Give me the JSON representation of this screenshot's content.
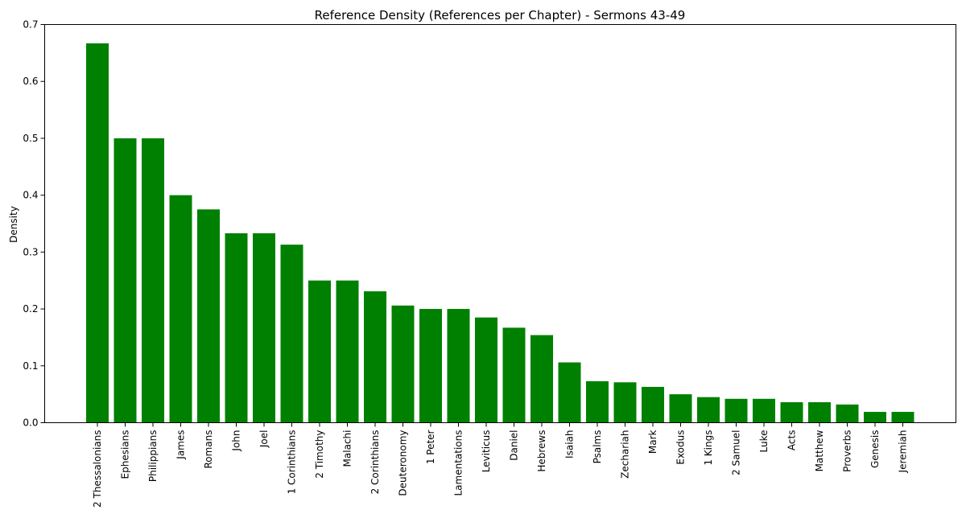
{
  "chart_data": {
    "type": "bar",
    "title": "Reference Density (References per Chapter) - Sermons 43-49",
    "xlabel": "",
    "ylabel": "Density",
    "ylim": [
      0,
      0.7
    ],
    "yticks": [
      "0.0",
      "0.1",
      "0.2",
      "0.3",
      "0.4",
      "0.5",
      "0.6",
      "0.7"
    ],
    "grid": false,
    "bar_color": "#008000",
    "categories": [
      "2 Thessalonians",
      "Ephesians",
      "Philippians",
      "James",
      "Romans",
      "John",
      "Joel",
      "1 Corinthians",
      "2 Timothy",
      "Malachi",
      "2 Corinthians",
      "Deuteronomy",
      "1 Peter",
      "Lamentations",
      "Leviticus",
      "Daniel",
      "Hebrews",
      "Isaiah",
      "Psalms",
      "Zechariah",
      "Mark",
      "Exodus",
      "1 Kings",
      "2 Samuel",
      "Luke",
      "Acts",
      "Matthew",
      "Proverbs",
      "Genesis",
      "Jeremiah"
    ],
    "values": [
      0.667,
      0.5,
      0.5,
      0.4,
      0.375,
      0.333,
      0.333,
      0.313,
      0.25,
      0.25,
      0.231,
      0.206,
      0.2,
      0.2,
      0.185,
      0.167,
      0.154,
      0.106,
      0.073,
      0.071,
      0.063,
      0.05,
      0.045,
      0.042,
      0.042,
      0.036,
      0.036,
      0.032,
      0.019,
      0.019
    ]
  }
}
